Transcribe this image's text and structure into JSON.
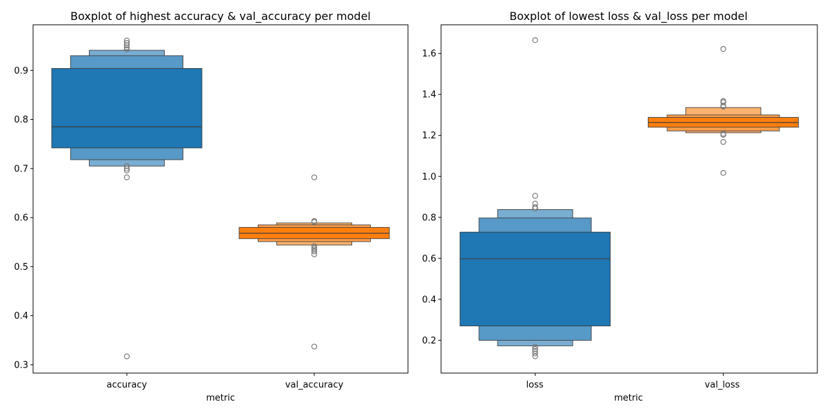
{
  "chart_data": [
    {
      "type": "boxen",
      "title": "Boxplot of highest accuracy & val_accuracy per model",
      "xlabel": "metric",
      "ylabel": "",
      "ylim": [
        0.283,
        0.993
      ],
      "yticks": [
        0.3,
        0.4,
        0.5,
        0.6,
        0.7,
        0.8,
        0.9
      ],
      "ytick_labels": [
        "0.3",
        "0.4",
        "0.5",
        "0.6",
        "0.7",
        "0.8",
        "0.9"
      ],
      "grid": false,
      "categories": [
        "accuracy",
        "val_accuracy"
      ],
      "series": [
        {
          "category": "accuracy",
          "color": "#1f77b4",
          "median": 0.785,
          "levels": [
            {
              "low": 0.742,
              "high": 0.904
            },
            {
              "low": 0.718,
              "high": 0.93
            },
            {
              "low": 0.705,
              "high": 0.941
            }
          ],
          "outliers": [
            0.961,
            0.956,
            0.951,
            0.947,
            0.943,
            0.705,
            0.7,
            0.696,
            0.682,
            0.317
          ]
        },
        {
          "category": "val_accuracy",
          "color": "#ff7f0e",
          "median": 0.568,
          "levels": [
            {
              "low": 0.557,
              "high": 0.58
            },
            {
              "low": 0.551,
              "high": 0.585
            },
            {
              "low": 0.544,
              "high": 0.589
            }
          ],
          "outliers": [
            0.682,
            0.593,
            0.591,
            0.542,
            0.538,
            0.535,
            0.531,
            0.525,
            0.337
          ]
        }
      ]
    },
    {
      "type": "boxen",
      "title": "Boxplot of lowest loss & val_loss per model",
      "xlabel": "metric",
      "ylabel": "",
      "ylim": [
        0.04,
        1.74
      ],
      "yticks": [
        0.2,
        0.4,
        0.6,
        0.8,
        1.0,
        1.2,
        1.4,
        1.6
      ],
      "ytick_labels": [
        "0.2",
        "0.4",
        "0.6",
        "0.8",
        "1.0",
        "1.2",
        "1.4",
        "1.6"
      ],
      "grid": false,
      "categories": [
        "loss",
        "val_loss"
      ],
      "series": [
        {
          "category": "loss",
          "color": "#1f77b4",
          "median": 0.598,
          "levels": [
            {
              "low": 0.27,
              "high": 0.728
            },
            {
              "low": 0.2,
              "high": 0.797
            },
            {
              "low": 0.173,
              "high": 0.838
            }
          ],
          "outliers": [
            1.665,
            0.905,
            0.867,
            0.85,
            0.843,
            0.168,
            0.157,
            0.148,
            0.136,
            0.122
          ]
        },
        {
          "category": "val_loss",
          "color": "#ff7f0e",
          "median": 1.263,
          "levels": [
            {
              "low": 1.24,
              "high": 1.288
            },
            {
              "low": 1.222,
              "high": 1.3
            },
            {
              "low": 1.213,
              "high": 1.336
            }
          ],
          "outliers": [
            1.622,
            1.368,
            1.362,
            1.345,
            1.34,
            1.208,
            1.203,
            1.168,
            1.017
          ]
        }
      ]
    }
  ]
}
